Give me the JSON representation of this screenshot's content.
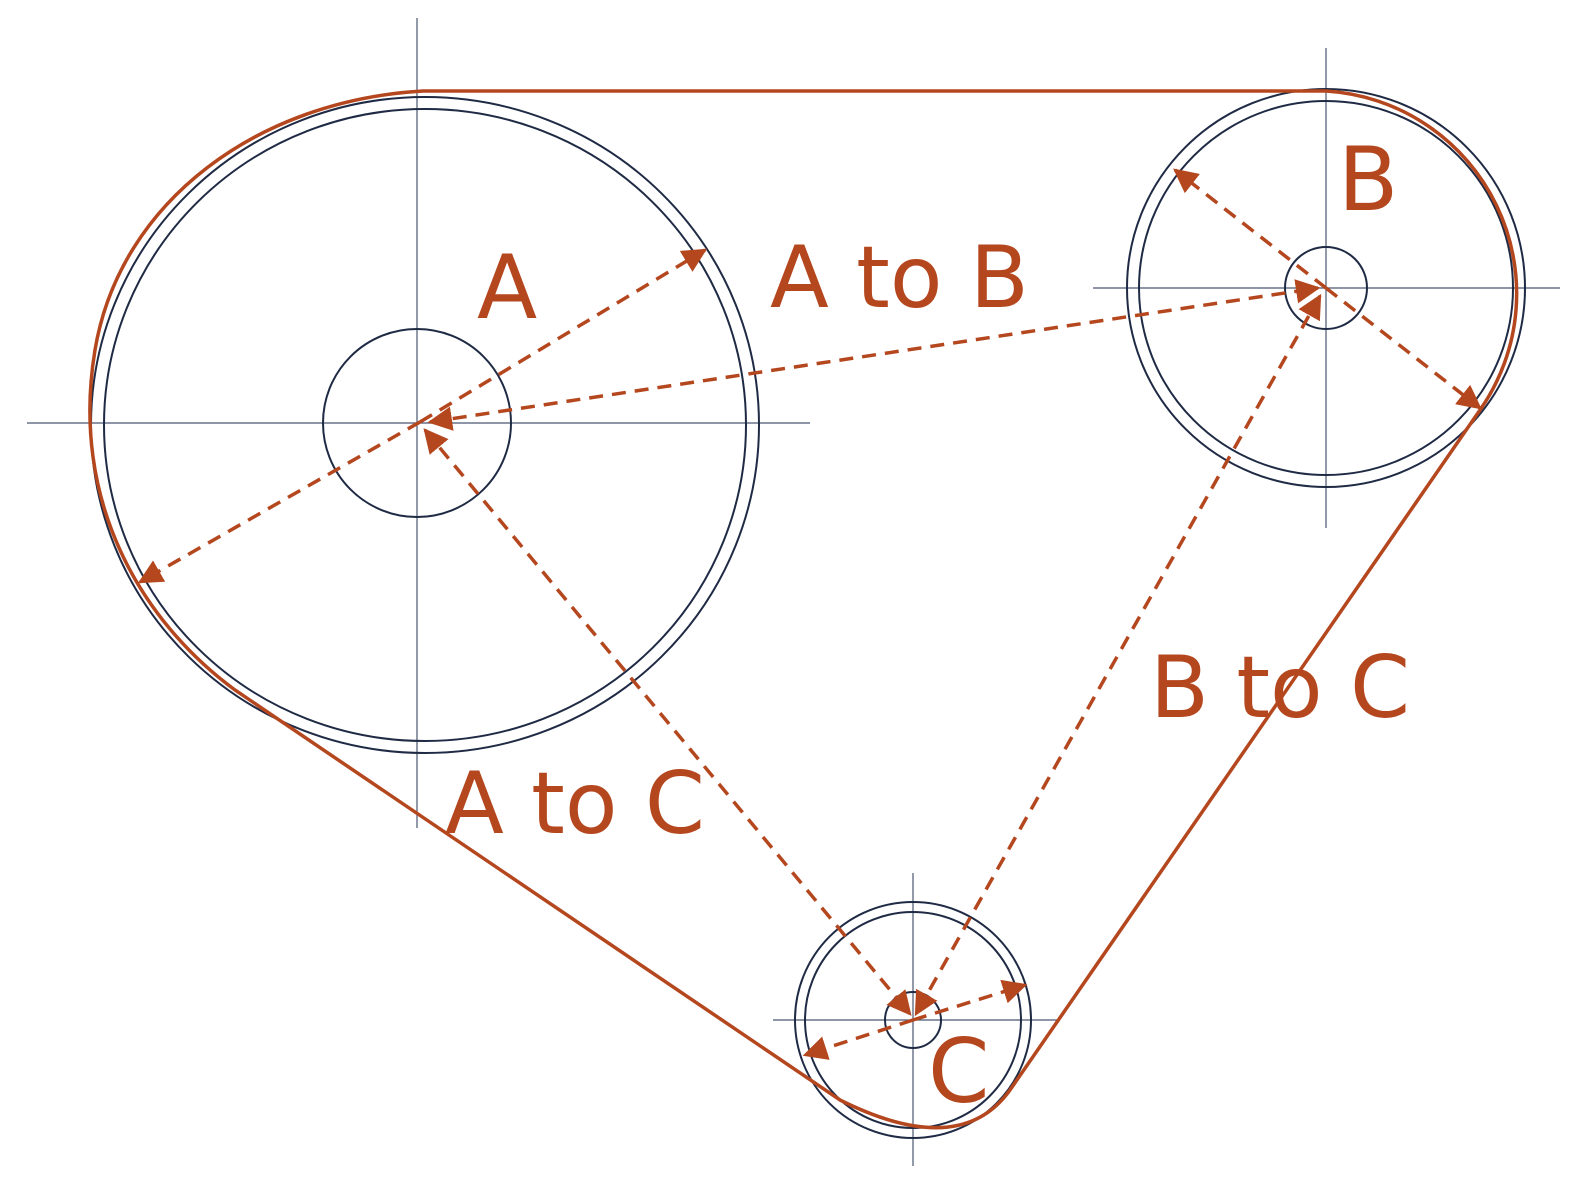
{
  "labels": {
    "pulley_a": "A",
    "pulley_b": "B",
    "pulley_c": "C",
    "a_to_b": "A to B",
    "b_to_c": "B to C",
    "a_to_c": "A to C"
  },
  "colors": {
    "belt": "#b5471f",
    "pulley_outline": "#1f2a44",
    "centerline": "#4a5670",
    "dimension": "#b5471f"
  }
}
